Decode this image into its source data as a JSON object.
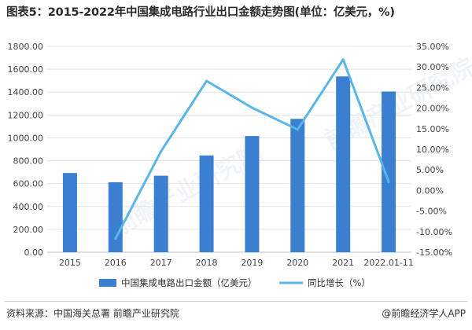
{
  "header": {
    "title": "图表5：2015-2022年中国集成电路行业出口金额走势图(单位：亿美元，%)"
  },
  "chart_data": {
    "type": "bar",
    "categories": [
      "2015",
      "2016",
      "2017",
      "2018",
      "2019",
      "2020",
      "2021",
      "2022.01-11"
    ],
    "series": [
      {
        "name": "中国集成电路出口金额（亿美元）",
        "type": "bar",
        "axis": "left",
        "color": "#3a7fd0",
        "values": [
          693,
          612,
          669,
          846,
          1016,
          1166,
          1537,
          1405
        ]
      },
      {
        "name": "同比增长（%）",
        "type": "line",
        "axis": "right",
        "color": "#59b6e8",
        "values": [
          null,
          -11.7,
          9.5,
          26.6,
          20.1,
          14.8,
          31.8,
          2.1
        ]
      }
    ],
    "ylim_left": [
      0,
      1800
    ],
    "ylim_right": [
      -15,
      35
    ],
    "yticks_left": [
      "0.00",
      "200.00",
      "400.00",
      "600.00",
      "800.00",
      "1000.00",
      "1200.00",
      "1400.00",
      "1600.00",
      "1800.00"
    ],
    "yticks_right": [
      "-15.00%",
      "-10.00%",
      "-5.00%",
      "0.00%",
      "5.00%",
      "10.00%",
      "15.00%",
      "20.00%",
      "25.00%",
      "30.00%",
      "35.00%"
    ],
    "gridlines": true,
    "legend_position": "bottom",
    "watermark": "前瞻产业研究院"
  },
  "footer": {
    "source": "资料来源：中国海关总署 前瞻产业研究院",
    "brand": "@前瞻经济学人APP"
  }
}
